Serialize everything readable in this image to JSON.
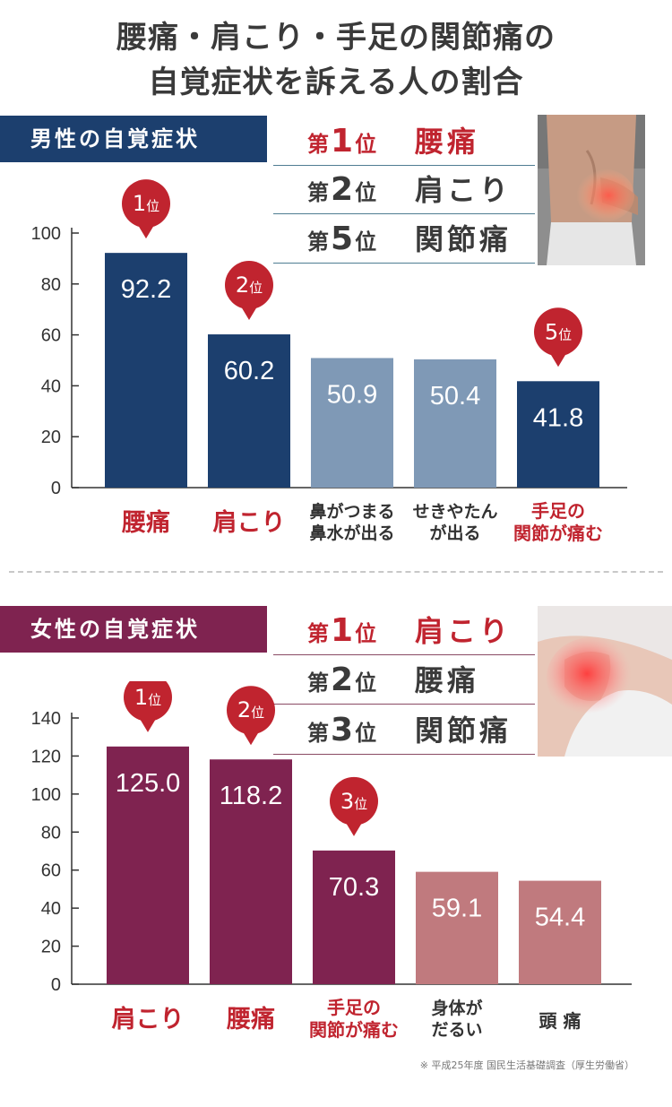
{
  "title": {
    "line1": "腰痛・肩こり・手足の関節痛の",
    "line2": "自覚症状を訴える人の割合"
  },
  "male": {
    "banner": "男性の自覚症状",
    "ranking": [
      {
        "prefix": "第",
        "num": "1",
        "suffix": "位",
        "name": "腰痛"
      },
      {
        "prefix": "第",
        "num": "2",
        "suffix": "位",
        "name": "肩こり"
      },
      {
        "prefix": "第",
        "num": "5",
        "suffix": "位",
        "name": "関節痛"
      }
    ]
  },
  "female": {
    "banner": "女性の自覚症状",
    "ranking": [
      {
        "prefix": "第",
        "num": "1",
        "suffix": "位",
        "name": "肩こり"
      },
      {
        "prefix": "第",
        "num": "2",
        "suffix": "位",
        "name": "腰痛"
      },
      {
        "prefix": "第",
        "num": "3",
        "suffix": "位",
        "name": "関節痛"
      }
    ]
  },
  "colors": {
    "male_primary": "#1c3f6e",
    "male_secondary": "#7f99b6",
    "female_primary": "#7f2350",
    "female_secondary": "#c07a7e",
    "badge": "#c0242f",
    "highlight_label": "#c0242f"
  },
  "chart_data": [
    {
      "type": "bar",
      "categories": [
        "腰痛",
        "肩こり",
        "鼻がつまる\n鼻水が出る",
        "せきやたん\nが出る",
        "手足の\n関節が痛む"
      ],
      "values": [
        92.2,
        60.2,
        50.9,
        50.4,
        41.8
      ],
      "value_labels": [
        "92.2",
        "60.2",
        "50.9",
        "50.4",
        "41.8"
      ],
      "highlight": [
        true,
        true,
        false,
        false,
        true
      ],
      "highlight_label": [
        true,
        true,
        false,
        false,
        true
      ],
      "badges": [
        "1位",
        "2位",
        "",
        "",
        "5位"
      ],
      "yticks": [
        "0",
        "20",
        "40",
        "60",
        "80",
        "100"
      ],
      "ylim": [
        0,
        100
      ],
      "grid": false,
      "legend": "none"
    },
    {
      "type": "bar",
      "categories": [
        "肩こり",
        "腰痛",
        "手足の\n関節が痛む",
        "身体が\nだるい",
        "頭 痛"
      ],
      "values": [
        125.0,
        118.2,
        70.3,
        59.1,
        54.4
      ],
      "value_labels": [
        "125.0",
        "118.2",
        "70.3",
        "59.1",
        "54.4"
      ],
      "highlight": [
        true,
        true,
        true,
        false,
        false
      ],
      "highlight_label": [
        true,
        true,
        true,
        false,
        false
      ],
      "badges": [
        "1位",
        "2位",
        "3位",
        "",
        ""
      ],
      "yticks": [
        "0",
        "20",
        "40",
        "60",
        "80",
        "100",
        "120",
        "140"
      ],
      "ylim": [
        0,
        140
      ],
      "grid": false,
      "legend": "none"
    }
  ],
  "footnote": "※ 平成25年度 国民生活基礎調査（厚生労働省）"
}
